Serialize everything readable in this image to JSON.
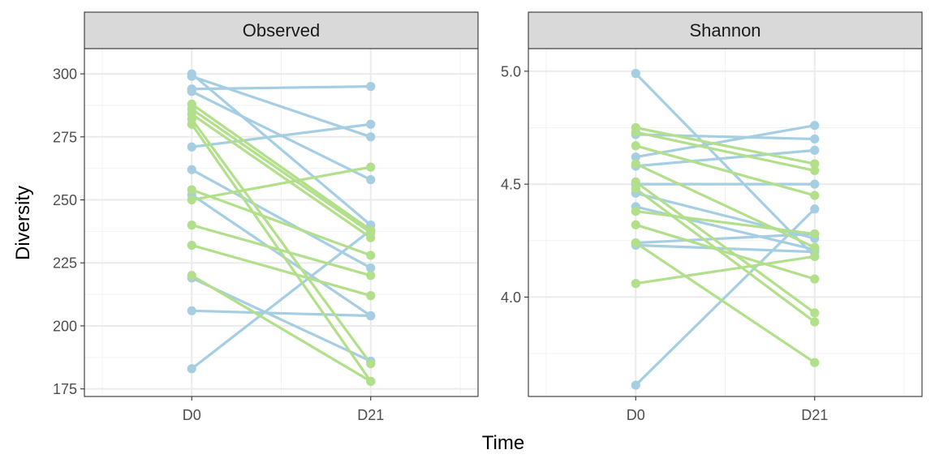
{
  "chart_data": {
    "type": "line",
    "xlabel": "Time",
    "ylabel": "Diversity",
    "x": [
      "D0",
      "D21"
    ],
    "grid": true,
    "colors": {
      "blue": "#a6cee3",
      "green": "#b2df8a"
    },
    "panels": [
      {
        "title": "Observed",
        "ylim": [
          172,
          310
        ],
        "yticks": [
          {
            "value": 175,
            "label": "175"
          },
          {
            "value": 200,
            "label": "200"
          },
          {
            "value": 225,
            "label": "225"
          },
          {
            "value": 250,
            "label": "250"
          },
          {
            "value": 275,
            "label": "275"
          },
          {
            "value": 300,
            "label": "300"
          }
        ],
        "series": [
          {
            "color": "blue",
            "values": [
              294,
              295
            ]
          },
          {
            "color": "blue",
            "values": [
              271,
              280
            ]
          },
          {
            "color": "blue",
            "values": [
              299,
              275
            ]
          },
          {
            "color": "blue",
            "values": [
              293,
              258
            ]
          },
          {
            "color": "blue",
            "values": [
              300,
              240
            ]
          },
          {
            "color": "blue",
            "values": [
              262,
              223
            ]
          },
          {
            "color": "blue",
            "values": [
              252,
              204
            ]
          },
          {
            "color": "blue",
            "values": [
              219,
              186
            ]
          },
          {
            "color": "blue",
            "values": [
              206,
              204
            ]
          },
          {
            "color": "blue",
            "values": [
              183,
              238
            ]
          },
          {
            "color": "green",
            "values": [
              288,
              238
            ]
          },
          {
            "color": "green",
            "values": [
              286,
              237
            ]
          },
          {
            "color": "green",
            "values": [
              284,
              235
            ]
          },
          {
            "color": "green",
            "values": [
              282,
              185
            ]
          },
          {
            "color": "green",
            "values": [
              280,
              178
            ]
          },
          {
            "color": "green",
            "values": [
              254,
              228
            ]
          },
          {
            "color": "green",
            "values": [
              250,
              263
            ]
          },
          {
            "color": "green",
            "values": [
              240,
              220
            ]
          },
          {
            "color": "green",
            "values": [
              232,
              212
            ]
          },
          {
            "color": "green",
            "values": [
              220,
              178
            ]
          }
        ]
      },
      {
        "title": "Shannon",
        "ylim": [
          3.56,
          5.1
        ],
        "yticks": [
          {
            "value": 4.0,
            "label": "4.0"
          },
          {
            "value": 4.5,
            "label": "4.5"
          },
          {
            "value": 5.0,
            "label": "5.0"
          }
        ],
        "series": [
          {
            "color": "blue",
            "values": [
              4.99,
              4.18
            ]
          },
          {
            "color": "blue",
            "values": [
              4.62,
              4.76
            ]
          },
          {
            "color": "blue",
            "values": [
              4.58,
              4.65
            ]
          },
          {
            "color": "blue",
            "values": [
              4.72,
              4.7
            ]
          },
          {
            "color": "blue",
            "values": [
              4.5,
              4.5
            ]
          },
          {
            "color": "blue",
            "values": [
              4.46,
              4.26
            ]
          },
          {
            "color": "blue",
            "values": [
              4.4,
              4.21
            ]
          },
          {
            "color": "blue",
            "values": [
              4.24,
              4.28
            ]
          },
          {
            "color": "blue",
            "values": [
              4.23,
              4.2
            ]
          },
          {
            "color": "blue",
            "values": [
              3.61,
              4.39
            ]
          },
          {
            "color": "green",
            "values": [
              4.75,
              4.59
            ]
          },
          {
            "color": "green",
            "values": [
              4.73,
              4.56
            ]
          },
          {
            "color": "green",
            "values": [
              4.67,
              4.45
            ]
          },
          {
            "color": "green",
            "values": [
              4.59,
              4.22
            ]
          },
          {
            "color": "green",
            "values": [
              4.51,
              3.93
            ]
          },
          {
            "color": "green",
            "values": [
              4.48,
              3.89
            ]
          },
          {
            "color": "green",
            "values": [
              4.38,
              4.28
            ]
          },
          {
            "color": "green",
            "values": [
              4.32,
              4.08
            ]
          },
          {
            "color": "green",
            "values": [
              4.24,
              3.71
            ]
          },
          {
            "color": "green",
            "values": [
              4.06,
              4.18
            ]
          }
        ]
      }
    ]
  }
}
